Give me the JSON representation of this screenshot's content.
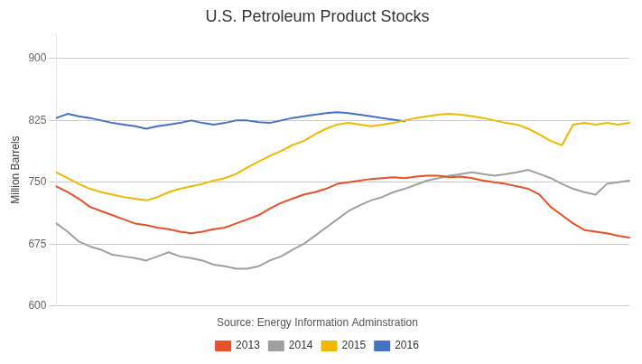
{
  "chart_data": {
    "type": "line",
    "title": "U.S. Petroleum Product Stocks",
    "y_label": "Million Barrels",
    "annotations": [
      "Source: Energy Information Adminstration"
    ],
    "categories": [
      null,
      null,
      null,
      null,
      null,
      null,
      null,
      null,
      null,
      null,
      null,
      null,
      null,
      null,
      null,
      null,
      null,
      null,
      null,
      null,
      null,
      null,
      null,
      null,
      null,
      null,
      null,
      null,
      null,
      null,
      null,
      null,
      null,
      null,
      null,
      null,
      null,
      null,
      null,
      null,
      null,
      null,
      null,
      null,
      null,
      null,
      null,
      null,
      null,
      null,
      null,
      null
    ],
    "series": [
      {
        "name": "2013",
        "color": "#E8502A",
        "values": [
          745,
          738,
          730,
          720,
          715,
          710,
          705,
          700,
          698,
          695,
          693,
          690,
          688,
          690,
          693,
          695,
          700,
          705,
          710,
          718,
          725,
          730,
          735,
          738,
          742,
          748,
          750,
          752,
          754,
          755,
          756,
          755,
          757,
          758,
          758,
          756,
          757,
          755,
          752,
          750,
          748,
          745,
          742,
          735,
          720,
          710,
          700,
          692,
          690,
          688,
          685,
          683
        ]
      },
      {
        "name": "2014",
        "color": "#A0A0A0",
        "values": [
          700,
          690,
          678,
          672,
          668,
          662,
          660,
          658,
          655,
          660,
          665,
          660,
          658,
          655,
          650,
          648,
          645,
          645,
          648,
          655,
          660,
          668,
          675,
          685,
          695,
          705,
          715,
          722,
          728,
          732,
          738,
          742,
          747,
          752,
          755,
          758,
          760,
          762,
          760,
          758,
          760,
          762,
          765,
          760,
          755,
          748,
          742,
          738,
          735,
          748,
          750,
          752
        ]
      },
      {
        "name": "2015",
        "color": "#F0B800",
        "values": [
          762,
          755,
          748,
          742,
          738,
          735,
          732,
          730,
          728,
          732,
          738,
          742,
          745,
          748,
          752,
          755,
          760,
          768,
          775,
          782,
          788,
          795,
          800,
          808,
          815,
          820,
          822,
          820,
          818,
          820,
          822,
          825,
          828,
          830,
          832,
          833,
          832,
          830,
          828,
          825,
          822,
          820,
          815,
          808,
          800,
          795,
          820,
          822,
          820,
          822,
          820,
          822
        ]
      },
      {
        "name": "2016",
        "color": "#4472C4",
        "values": [
          828,
          833,
          830,
          828,
          825,
          822,
          820,
          818,
          815,
          818,
          820,
          822,
          825,
          822,
          820,
          822,
          825,
          825,
          823,
          822,
          825,
          828,
          830,
          832,
          834,
          835,
          834,
          832,
          830,
          828,
          826,
          824,
          null,
          null,
          null,
          null,
          null,
          null,
          null,
          null,
          null,
          null,
          null,
          null,
          null,
          null,
          null,
          null,
          null,
          null,
          null,
          null
        ]
      }
    ],
    "ylim": [
      600,
      930
    ],
    "yticks": [
      600,
      675,
      750,
      825,
      900
    ],
    "grid": true,
    "legend": "bottom",
    "tick_labels": "y"
  }
}
